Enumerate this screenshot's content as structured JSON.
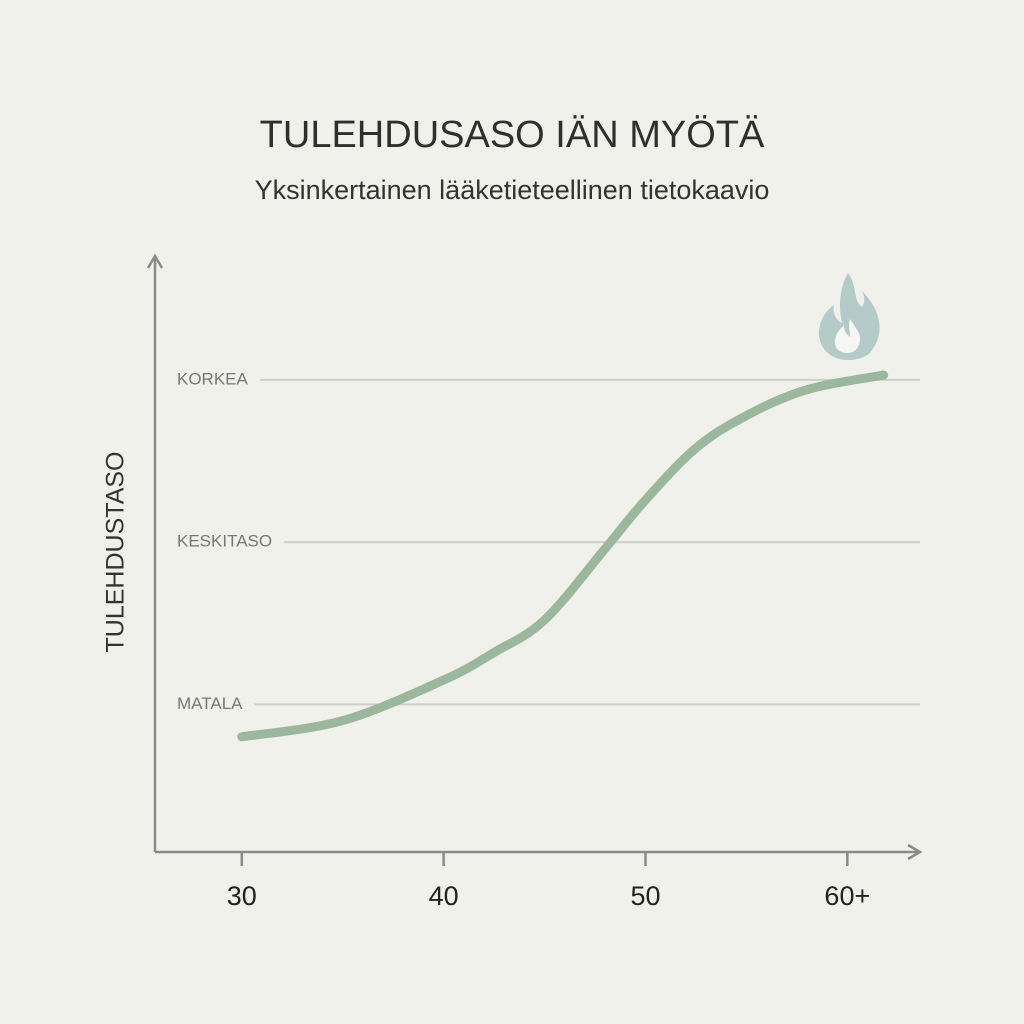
{
  "chart_data": {
    "type": "line",
    "title": "TULEHDUSASO IÄN MYÖTÄ",
    "subtitle": "Yksinkertainen lääketieteellinen tietokaavio",
    "y_label": "TULEHDUSTASO",
    "x": [
      30,
      35,
      40,
      42.5,
      45,
      48,
      50,
      52.5,
      55,
      58,
      61.8
    ],
    "series": [
      {
        "color": "#9bb89f",
        "values": [
          0.8,
          0.9,
          1.15,
          1.32,
          1.52,
          1.96,
          2.26,
          2.58,
          2.78,
          2.94,
          3.03
        ]
      }
    ],
    "xlim": [
      25.7,
      63.6
    ],
    "ylim": [
      0.09,
      3.77
    ],
    "xticks": [
      30,
      40,
      50,
      {
        "value": 60,
        "label": "60+"
      }
    ],
    "yticks": [
      {
        "value": 1,
        "label": "MATALA"
      },
      {
        "value": 2,
        "label": "KESKITASO"
      },
      {
        "value": 3,
        "label": "KORKEA"
      }
    ],
    "grid": true
  }
}
